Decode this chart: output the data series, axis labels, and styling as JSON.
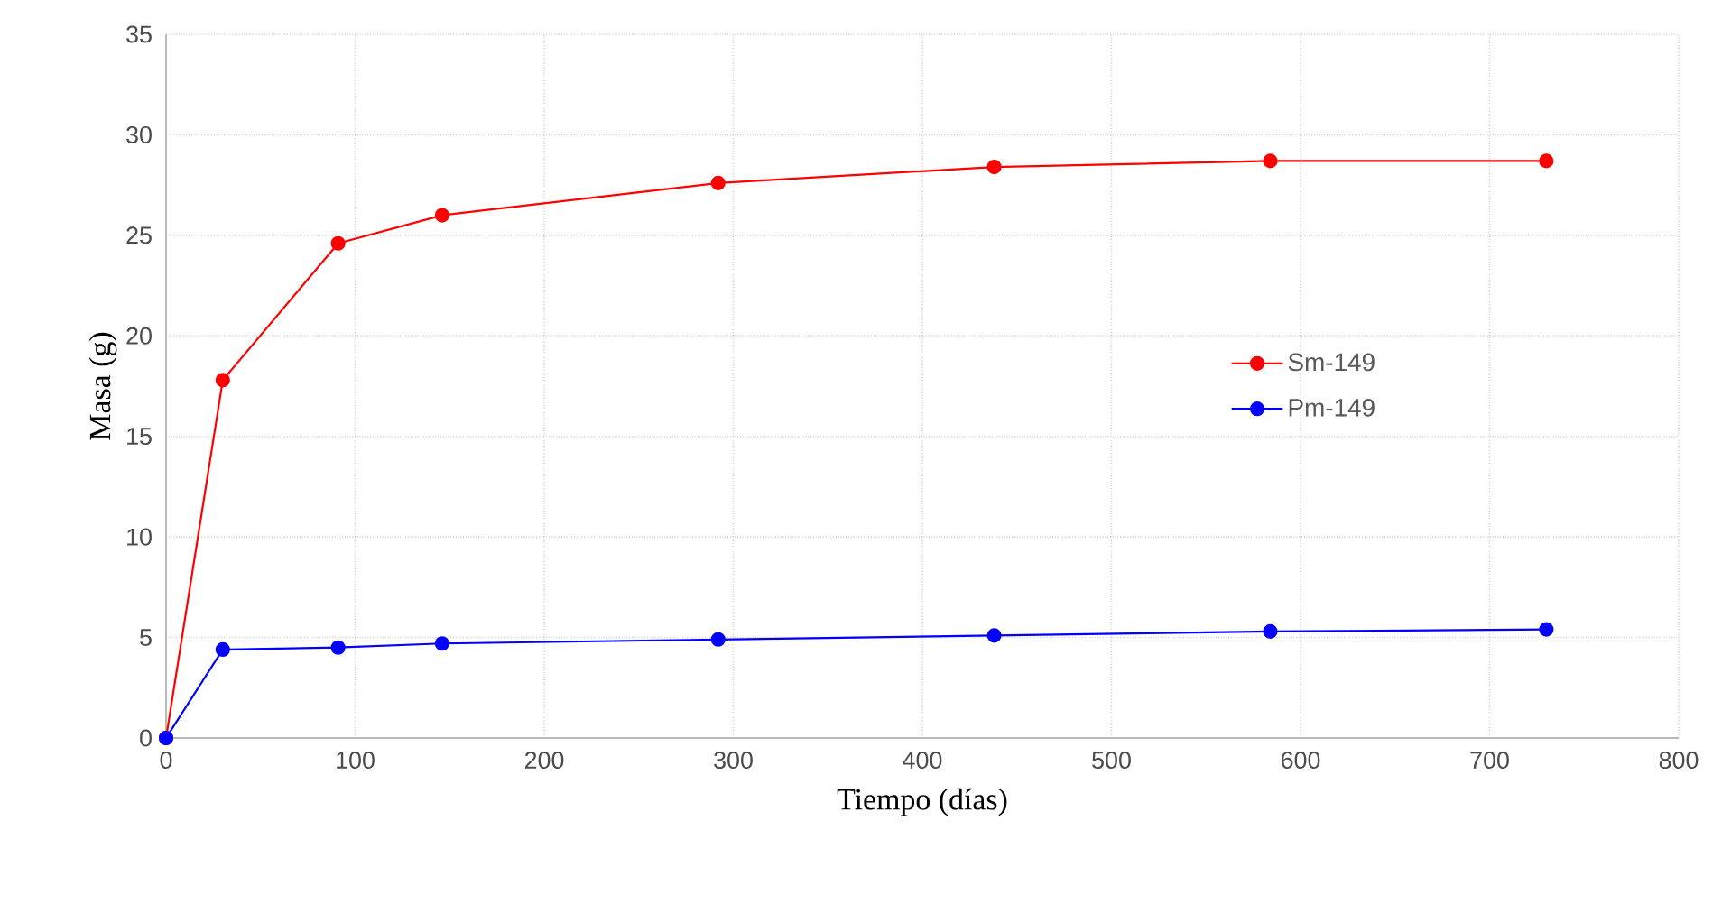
{
  "chart_data": {
    "type": "line",
    "xlabel": "Tiempo (días)",
    "ylabel": "Masa (g)",
    "x": [
      0,
      30,
      91,
      146,
      292,
      438,
      584,
      730
    ],
    "series": [
      {
        "name": "Sm-149",
        "color": "#ff0000",
        "values": [
          0,
          17.8,
          24.6,
          26.0,
          27.6,
          28.4,
          28.7,
          28.7
        ]
      },
      {
        "name": "Pm-149",
        "color": "#0000ff",
        "values": [
          0,
          4.4,
          4.5,
          4.7,
          4.9,
          5.1,
          5.3,
          5.4
        ]
      }
    ],
    "xlim": [
      0,
      800
    ],
    "ylim": [
      0,
      35
    ],
    "xticks": [
      0,
      100,
      200,
      300,
      400,
      500,
      600,
      700,
      800
    ],
    "yticks": [
      0,
      5,
      10,
      15,
      20,
      25,
      30,
      35
    ],
    "grid": true,
    "legend": "right",
    "marker": "circle",
    "line_style": "solid"
  }
}
